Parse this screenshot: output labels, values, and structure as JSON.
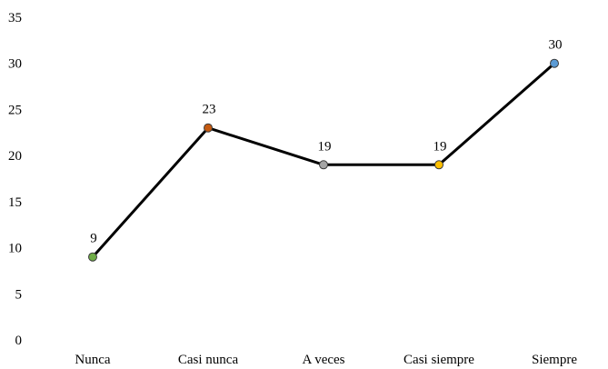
{
  "chart_data": {
    "type": "line",
    "categories": [
      "Nunca",
      "Casi nunca",
      "A veces",
      "Casi siempre",
      "Siempre"
    ],
    "values": [
      9,
      23,
      19,
      19,
      30
    ],
    "data_labels": [
      "9",
      "23",
      "19",
      "19",
      "30"
    ],
    "ylim": [
      0,
      35
    ],
    "yticks": [
      "0",
      "5",
      "10",
      "15",
      "20",
      "25",
      "30",
      "35"
    ],
    "grid": false,
    "line_color": "#000000",
    "marker_colors": [
      "#70ad47",
      "#c55a11",
      "#a5a5a5",
      "#ffc000",
      "#5b9bd5"
    ]
  }
}
